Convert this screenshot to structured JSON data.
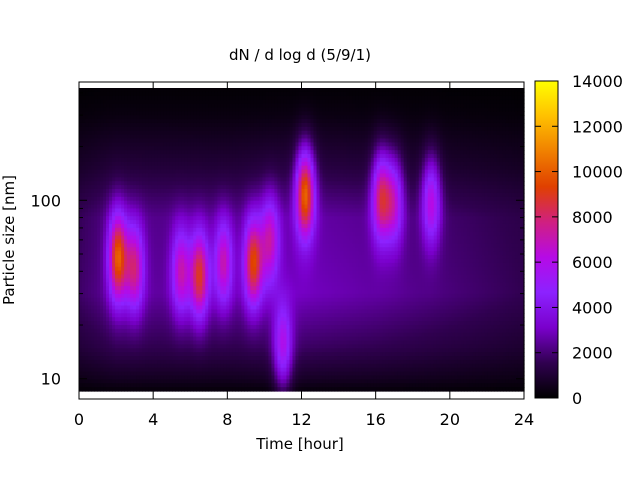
{
  "chart_data": {
    "type": "heatmap",
    "title": "dN / d log d (5/9/1)",
    "xlabel": "Time [hour]",
    "ylabel": "Particle size [nm]",
    "x_range": [
      0,
      24
    ],
    "x_ticks": [
      "0",
      "4",
      "8",
      "12",
      "16",
      "20",
      "24"
    ],
    "y_scale": "log",
    "y_ticks": [
      "10",
      "100"
    ],
    "colorbar": {
      "range": [
        0,
        14000
      ],
      "ticks": [
        "0",
        "2000",
        "4000",
        "6000",
        "8000",
        "10000",
        "12000",
        "14000"
      ],
      "colormap": [
        "#000000",
        "#300050",
        "#7a00cc",
        "#8c22ff",
        "#b60ae6",
        "#d02080",
        "#e04000",
        "#f08000",
        "#ffc000",
        "#ffff00"
      ]
    },
    "background_level": 2600,
    "size_profile": [
      {
        "size_nm": 8,
        "factor": 0.0
      },
      {
        "size_nm": 10,
        "factor": 0.25
      },
      {
        "size_nm": 15,
        "factor": 0.6
      },
      {
        "size_nm": 30,
        "factor": 1.0
      },
      {
        "size_nm": 80,
        "factor": 0.9
      },
      {
        "size_nm": 150,
        "factor": 0.45
      },
      {
        "size_nm": 300,
        "factor": 0.12
      },
      {
        "size_nm": 400,
        "factor": 0.05
      }
    ],
    "time_profile": [
      {
        "hour": 0,
        "factor": 0.7
      },
      {
        "hour": 2,
        "factor": 1.0
      },
      {
        "hour": 8,
        "factor": 0.95
      },
      {
        "hour": 12,
        "factor": 1.15
      },
      {
        "hour": 16,
        "factor": 1.0
      },
      {
        "hour": 20,
        "factor": 0.8
      },
      {
        "hour": 24,
        "factor": 0.6
      }
    ],
    "events": [
      {
        "hour": 2.1,
        "size_nm": 48,
        "value": 7600
      },
      {
        "hour": 3.0,
        "size_nm": 42,
        "value": 5200
      },
      {
        "hour": 5.5,
        "size_nm": 40,
        "value": 4600
      },
      {
        "hour": 6.5,
        "size_nm": 38,
        "value": 6500
      },
      {
        "hour": 7.8,
        "size_nm": 45,
        "value": 4700
      },
      {
        "hour": 9.4,
        "size_nm": 45,
        "value": 6900
      },
      {
        "hour": 10.3,
        "size_nm": 60,
        "value": 4500
      },
      {
        "hour": 11.0,
        "size_nm": 15,
        "value": 4200
      },
      {
        "hour": 12.2,
        "size_nm": 110,
        "value": 8200
      },
      {
        "hour": 16.3,
        "size_nm": 105,
        "value": 6200
      },
      {
        "hour": 17.0,
        "size_nm": 100,
        "value": 4400
      },
      {
        "hour": 19.0,
        "size_nm": 100,
        "value": 4600
      }
    ]
  }
}
